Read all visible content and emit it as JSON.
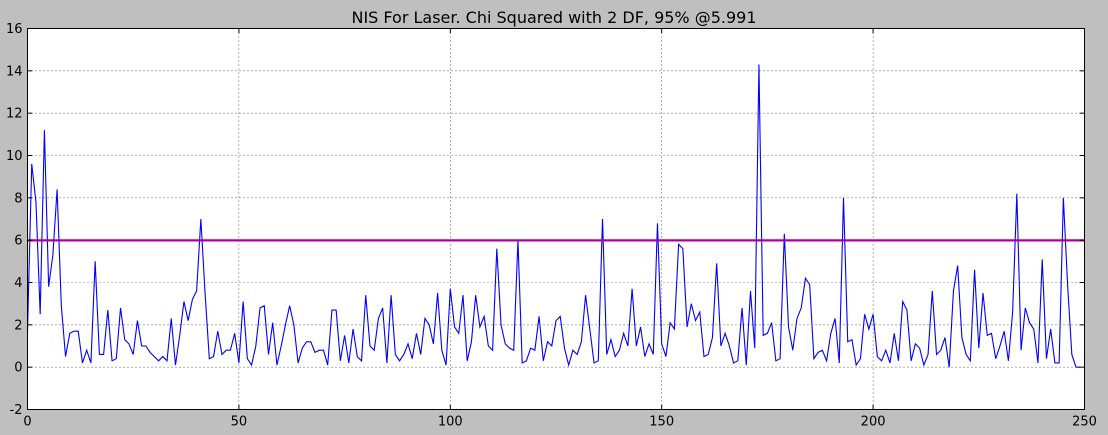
{
  "chart_data": {
    "type": "line",
    "title": "NIS For Laser. Chi Squared with 2 DF, 95% @5.991",
    "xlabel": "",
    "ylabel": "",
    "xlim": [
      0,
      250
    ],
    "ylim": [
      -2,
      16
    ],
    "xticks": [
      0,
      50,
      100,
      150,
      200,
      250
    ],
    "yticks": [
      -2,
      0,
      2,
      4,
      6,
      8,
      10,
      12,
      14,
      16
    ],
    "grid": true,
    "legend": "none",
    "series": [
      {
        "color": "#0000ff",
        "x_start": 0,
        "x_step": 1,
        "values": [
          1.7,
          9.6,
          7.8,
          2.5,
          11.2,
          3.8,
          5.3,
          8.4,
          2.9,
          0.5,
          1.6,
          1.7,
          1.7,
          0.2,
          0.8,
          0.2,
          5.0,
          0.6,
          0.6,
          2.7,
          0.3,
          0.4,
          2.8,
          1.3,
          1.1,
          0.6,
          2.2,
          1.0,
          1.0,
          0.7,
          0.5,
          0.3,
          0.5,
          0.3,
          2.3,
          0.1,
          1.5,
          3.1,
          2.2,
          3.2,
          3.6,
          7.0,
          3.5,
          0.4,
          0.5,
          1.7,
          0.6,
          0.8,
          0.8,
          1.6,
          0.2,
          3.1,
          0.4,
          0.1,
          1.0,
          2.8,
          2.9,
          0.6,
          2.1,
          0.1,
          1.0,
          2.0,
          2.9,
          2.0,
          0.2,
          0.9,
          1.2,
          1.2,
          0.7,
          0.8,
          0.8,
          0.1,
          2.7,
          2.7,
          0.3,
          1.5,
          0.2,
          1.8,
          0.5,
          0.3,
          3.4,
          1.0,
          0.8,
          2.3,
          2.8,
          0.2,
          3.4,
          0.6,
          0.3,
          0.6,
          1.1,
          0.4,
          1.6,
          0.6,
          2.3,
          2.0,
          1.1,
          3.5,
          0.8,
          0.1,
          3.7,
          1.9,
          1.6,
          3.4,
          0.3,
          1.2,
          3.4,
          1.9,
          2.4,
          1.0,
          0.8,
          5.6,
          2.0,
          1.1,
          0.9,
          0.8,
          6.0,
          0.2,
          0.3,
          0.9,
          0.8,
          2.4,
          0.3,
          1.2,
          1.0,
          2.2,
          2.4,
          0.9,
          0.1,
          0.8,
          0.6,
          1.2,
          3.4,
          1.8,
          0.2,
          0.3,
          7.0,
          0.6,
          1.3,
          0.5,
          0.8,
          1.6,
          1.0,
          3.7,
          1.0,
          1.9,
          0.5,
          1.1,
          0.6,
          6.8,
          1.1,
          0.5,
          2.1,
          1.8,
          5.8,
          5.6,
          1.9,
          3.0,
          2.2,
          2.6,
          0.5,
          0.6,
          1.4,
          4.9,
          1.0,
          1.6,
          1.0,
          0.2,
          0.3,
          2.8,
          0.1,
          3.6,
          0.9,
          14.3,
          1.5,
          1.6,
          2.1,
          0.3,
          0.4,
          6.3,
          1.9,
          0.8,
          2.3,
          2.8,
          4.2,
          3.9,
          0.4,
          0.7,
          0.8,
          0.3,
          1.6,
          2.3,
          0.2,
          8.0,
          1.2,
          1.3,
          0.1,
          0.4,
          2.5,
          1.8,
          2.5,
          0.5,
          0.3,
          0.8,
          0.2,
          1.6,
          0.3,
          3.1,
          2.7,
          0.3,
          1.1,
          0.9,
          0.1,
          0.6,
          3.6,
          0.6,
          0.8,
          1.4,
          0.0,
          3.6,
          4.8,
          1.4,
          0.6,
          0.3,
          4.6,
          0.9,
          3.5,
          1.5,
          1.6,
          0.4,
          1.0,
          1.7,
          0.3,
          2.6,
          8.2,
          0.8,
          2.8,
          2.1,
          1.8,
          0.2,
          5.1,
          0.4,
          1.8,
          0.2,
          0.2,
          8.0,
          3.9,
          0.6,
          0.0,
          0.0
        ]
      },
      {
        "color": "#ff0000",
        "x": [
          0,
          250
        ],
        "values": [
          5.991,
          5.991
        ]
      },
      {
        "color": "#8000ff",
        "x": [
          0,
          250
        ],
        "values": [
          5.991,
          5.991
        ]
      }
    ]
  }
}
